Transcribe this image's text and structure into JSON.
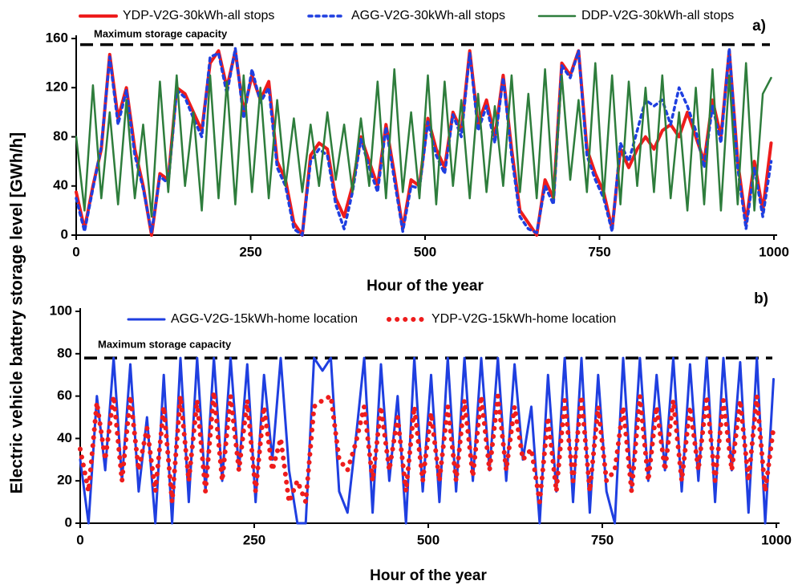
{
  "chart_data": [
    {
      "type": "line",
      "panel_label": "a)",
      "ylabel": "Electric vehicle battery storage level [GWh/h]",
      "xlabel": "Hour of the year",
      "xlim": [
        0,
        1000
      ],
      "xticks": [
        0,
        250,
        500,
        750,
        1000
      ],
      "ylim": [
        0,
        160
      ],
      "yticks": [
        0,
        40,
        80,
        120,
        160
      ],
      "annotations": [
        {
          "text": "Maximum storage capacity",
          "value": 155
        }
      ],
      "x": [
        0,
        12,
        24,
        36,
        48,
        60,
        72,
        84,
        96,
        108,
        120,
        132,
        144,
        156,
        168,
        180,
        192,
        204,
        216,
        228,
        240,
        252,
        264,
        276,
        288,
        300,
        312,
        324,
        336,
        348,
        360,
        372,
        384,
        396,
        408,
        420,
        432,
        444,
        456,
        468,
        480,
        492,
        504,
        516,
        528,
        540,
        552,
        564,
        576,
        588,
        600,
        612,
        624,
        636,
        648,
        660,
        672,
        684,
        696,
        708,
        720,
        732,
        744,
        756,
        768,
        780,
        792,
        804,
        816,
        828,
        840,
        852,
        864,
        876,
        888,
        900,
        912,
        924,
        936,
        948,
        960,
        972,
        984,
        996
      ],
      "series": [
        {
          "name": "YDP-V2G-30kWh-all stops",
          "color": "#ee1c1c",
          "line_style": "solid",
          "width": 4,
          "values": [
            35,
            5,
            40,
            70,
            147,
            95,
            120,
            70,
            40,
            0,
            50,
            45,
            120,
            115,
            100,
            85,
            140,
            150,
            120,
            150,
            100,
            130,
            110,
            125,
            60,
            45,
            10,
            0,
            65,
            75,
            70,
            30,
            15,
            40,
            80,
            60,
            40,
            90,
            50,
            5,
            45,
            40,
            95,
            70,
            55,
            100,
            85,
            150,
            90,
            110,
            80,
            130,
            70,
            20,
            10,
            0,
            45,
            30,
            140,
            130,
            150,
            70,
            50,
            35,
            5,
            70,
            55,
            70,
            80,
            70,
            85,
            90,
            80,
            100,
            80,
            60,
            110,
            80,
            150,
            60,
            10,
            60,
            20,
            75
          ]
        },
        {
          "name": "AGG-V2G-30kWh-all stops",
          "color": "#1f3fe0",
          "line_style": "dotted",
          "width": 3.5,
          "values": [
            30,
            3,
            38,
            72,
            145,
            90,
            118,
            65,
            38,
            2,
            48,
            42,
            118,
            112,
            95,
            80,
            145,
            148,
            115,
            152,
            95,
            135,
            108,
            120,
            55,
            40,
            5,
            0,
            60,
            70,
            65,
            25,
            5,
            35,
            78,
            55,
            35,
            88,
            45,
            3,
            40,
            38,
            92,
            65,
            50,
            98,
            80,
            148,
            85,
            105,
            75,
            128,
            65,
            15,
            5,
            2,
            40,
            25,
            138,
            128,
            150,
            65,
            45,
            30,
            3,
            75,
            60,
            85,
            110,
            105,
            110,
            90,
            120,
            105,
            85,
            55,
            105,
            75,
            152,
            55,
            5,
            55,
            15,
            60
          ]
        },
        {
          "name": "DDP-V2G-30kWh-all stops",
          "color": "#2e7d3c",
          "line_style": "solid",
          "width": 2.5,
          "values": [
            80,
            20,
            122,
            30,
            100,
            25,
            110,
            30,
            90,
            15,
            125,
            35,
            130,
            40,
            100,
            20,
            130,
            30,
            125,
            25,
            130,
            35,
            120,
            30,
            110,
            40,
            95,
            35,
            90,
            40,
            100,
            45,
            90,
            35,
            95,
            40,
            125,
            30,
            135,
            35,
            100,
            30,
            130,
            25,
            125,
            40,
            110,
            30,
            115,
            35,
            105,
            40,
            130,
            35,
            115,
            30,
            135,
            30,
            130,
            45,
            110,
            35,
            140,
            30,
            130,
            25,
            125,
            40,
            120,
            35,
            130,
            30,
            100,
            20,
            120,
            25,
            135,
            20,
            130,
            25,
            140,
            20,
            115,
            128
          ]
        }
      ]
    },
    {
      "type": "line",
      "panel_label": "b)",
      "xlabel": "Hour of the year",
      "xlim": [
        0,
        1000
      ],
      "xticks": [
        0,
        250,
        500,
        750,
        1000
      ],
      "ylim": [
        0,
        100
      ],
      "yticks": [
        0,
        20,
        40,
        60,
        80,
        100
      ],
      "annotations": [
        {
          "text": "Maximum storage capacity",
          "value": 78
        }
      ],
      "x": [
        0,
        12,
        24,
        36,
        48,
        60,
        72,
        84,
        96,
        108,
        120,
        132,
        144,
        156,
        168,
        180,
        192,
        204,
        216,
        228,
        240,
        252,
        264,
        276,
        288,
        300,
        312,
        324,
        336,
        348,
        360,
        372,
        384,
        396,
        408,
        420,
        432,
        444,
        456,
        468,
        480,
        492,
        504,
        516,
        528,
        540,
        552,
        564,
        576,
        588,
        600,
        612,
        624,
        636,
        648,
        660,
        672,
        684,
        696,
        708,
        720,
        732,
        744,
        756,
        768,
        780,
        792,
        804,
        816,
        828,
        840,
        852,
        864,
        876,
        888,
        900,
        912,
        924,
        936,
        948,
        960,
        972,
        984,
        996
      ],
      "series": [
        {
          "name": "AGG-V2G-15kWh-home location",
          "color": "#1f3fe0",
          "line_style": "solid",
          "width": 3,
          "values": [
            30,
            0,
            60,
            25,
            78,
            20,
            75,
            15,
            50,
            0,
            70,
            0,
            78,
            10,
            78,
            15,
            78,
            20,
            78,
            25,
            75,
            10,
            70,
            30,
            78,
            25,
            0,
            0,
            78,
            72,
            78,
            15,
            5,
            40,
            78,
            5,
            75,
            20,
            60,
            0,
            78,
            15,
            70,
            10,
            78,
            15,
            78,
            20,
            78,
            25,
            78,
            20,
            75,
            30,
            55,
            0,
            70,
            15,
            78,
            10,
            78,
            5,
            70,
            15,
            0,
            78,
            15,
            78,
            20,
            70,
            25,
            78,
            15,
            75,
            20,
            78,
            10,
            78,
            25,
            76,
            5,
            78,
            0,
            68
          ]
        },
        {
          "name": "YDP-V2G-15kWh-home location",
          "color": "#ee1c1c",
          "line_style": "dotted",
          "width": 6,
          "values": [
            35,
            15,
            57,
            30,
            60,
            20,
            60,
            25,
            45,
            15,
            55,
            10,
            60,
            20,
            58,
            15,
            62,
            20,
            60,
            25,
            58,
            15,
            55,
            25,
            40,
            10,
            20,
            10,
            55,
            58,
            60,
            30,
            25,
            38,
            55,
            20,
            55,
            25,
            50,
            15,
            55,
            20,
            52,
            20,
            55,
            20,
            58,
            22,
            60,
            25,
            60,
            25,
            55,
            30,
            35,
            10,
            50,
            15,
            58,
            20,
            60,
            15,
            55,
            20,
            25,
            55,
            15,
            60,
            20,
            55,
            25,
            58,
            20,
            55,
            25,
            60,
            20,
            58,
            25,
            58,
            20,
            60,
            15,
            45
          ]
        }
      ]
    }
  ]
}
